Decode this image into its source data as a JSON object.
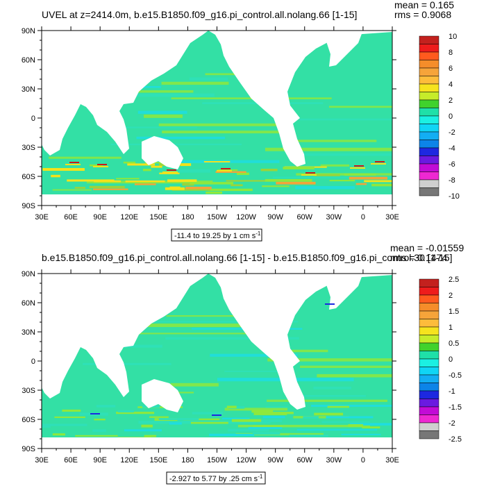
{
  "colors": {
    "ocean_base": "#33e0a5",
    "bands": [
      "#8fe83c",
      "#2fe0b8",
      "#1fdde0",
      "#9ad43a",
      "#f4e21a",
      "#f2a43a",
      "#c8191c"
    ],
    "land": "#ffffff"
  },
  "panels": [
    {
      "title": "UVEL at z=2414.0m, b.e15.B1850.f09_g16.pi_control.all.nolang.66 [1-15]",
      "mean": "mean = 0.165",
      "rms": "rms = 0.9068",
      "range_label": "-11.4 to 19.25 by 1 cm s",
      "range_sup": "-1",
      "lat_labels": [
        "90N",
        "60N",
        "30N",
        "0",
        "30S",
        "60S",
        "90S"
      ],
      "lon_labels": [
        "30E",
        "60E",
        "90E",
        "120E",
        "150E",
        "180",
        "150W",
        "120W",
        "90W",
        "60W",
        "30W",
        "0",
        "30E"
      ],
      "colorbar": {
        "colors": [
          "#c3211e",
          "#ee1c1c",
          "#ff5a1e",
          "#f58d2a",
          "#f6a43a",
          "#fdbc3b",
          "#f6e31e",
          "#c6ec2a",
          "#40d22c",
          "#1fe0a8",
          "#1bf0e2",
          "#10d5f5",
          "#13aef3",
          "#0c84e8",
          "#1d28e0",
          "#6a1ae0",
          "#c20bd6",
          "#ee28d2",
          "#cfcfcf",
          "#777777"
        ],
        "labels": [
          "10",
          "8",
          "6",
          "4",
          "2",
          "0",
          "-2",
          "-4",
          "-6",
          "-8",
          "-10"
        ]
      }
    },
    {
      "title": "b.e15.B1850.f09_g16.pi_control.all.nolang.66 [1-15] - b.e15.B1850.f09_g16.pi_control.30 [1-15]",
      "mean": "mean = -0.01559",
      "rms": "rms = 0.1474",
      "range_label": "-2.927 to 5.77 by .25 cm s",
      "range_sup": "-1",
      "lat_labels": [
        "90N",
        "60N",
        "30N",
        "0",
        "30S",
        "60S",
        "90S"
      ],
      "lon_labels": [
        "30E",
        "60E",
        "90E",
        "120E",
        "150E",
        "180",
        "150W",
        "120W",
        "90W",
        "60W",
        "30W",
        "0",
        "30E"
      ],
      "colorbar": {
        "colors": [
          "#c3211e",
          "#ee1c1c",
          "#ff5a1e",
          "#f58d2a",
          "#f6a43a",
          "#fdbc3b",
          "#f6e31e",
          "#c6ec2a",
          "#40d22c",
          "#1fe0a8",
          "#1bf0e2",
          "#10d5f5",
          "#13aef3",
          "#0c84e8",
          "#1d28e0",
          "#6a1ae0",
          "#c20bd6",
          "#ee28d2",
          "#cfcfcf",
          "#777777"
        ],
        "labels": [
          "2.5",
          "2",
          "1.5",
          "1",
          "0.5",
          "0",
          "-0.5",
          "-1",
          "-1.5",
          "-2",
          "-2.5"
        ]
      }
    }
  ]
}
